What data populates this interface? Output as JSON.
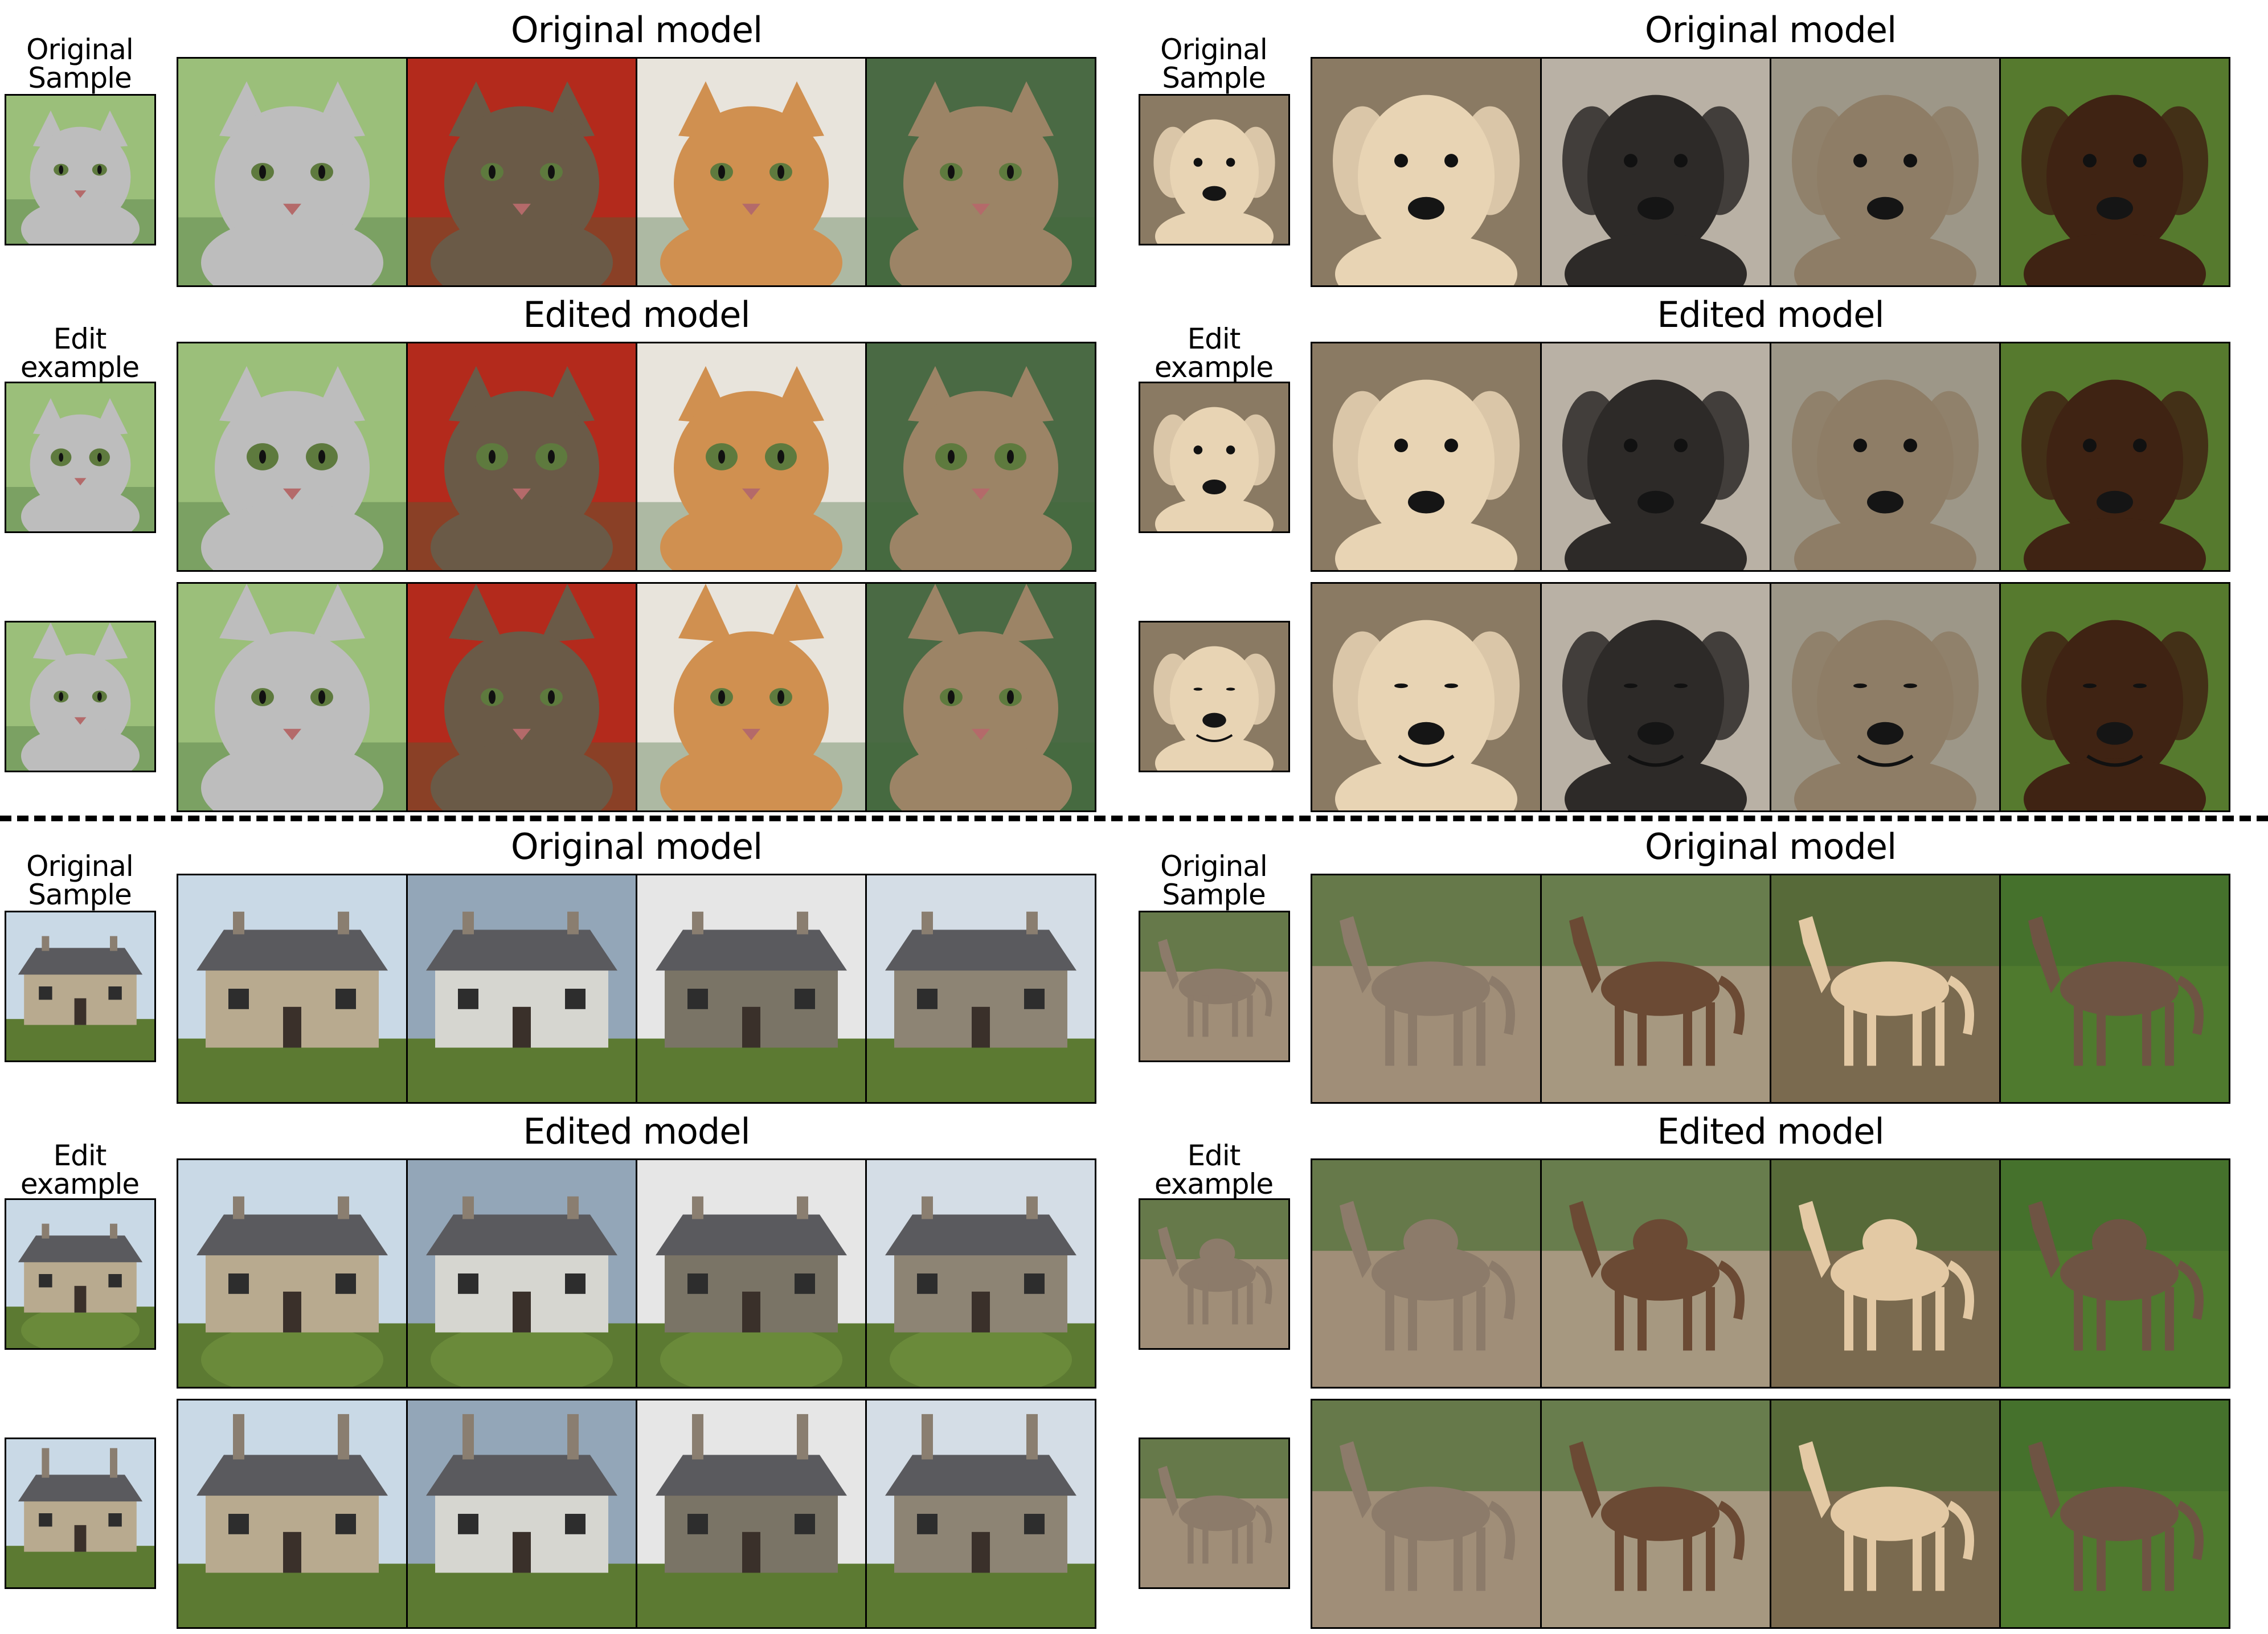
{
  "panels": [
    {
      "subject": "cat",
      "labels": {
        "original_sample": "Original\nSample",
        "edit_example": "Edit\nexample",
        "original_model": "Original model",
        "edited_model": "Edited model"
      },
      "colors": {
        "fur": [
          "#bdbdbd",
          "#6a5a47",
          "#d09050",
          "#9c8466"
        ],
        "bg": [
          "#9bbf7a",
          "#b32a1c",
          "#e8e4dc",
          "#4a6a44"
        ],
        "accent": "#3e6b3a"
      }
    },
    {
      "subject": "dog",
      "labels": {
        "original_sample": "Original\nSample",
        "edit_example": "Edit\nexample",
        "original_model": "Original model",
        "edited_model": "Edited model"
      },
      "colors": {
        "fur": [
          "#e8d4b4",
          "#2d2a28",
          "#8e7d66",
          "#3f2313"
        ],
        "bg": [
          "#8a7a63",
          "#b9b1a5",
          "#9d9788",
          "#567a2e"
        ],
        "accent": "#d69a2a"
      }
    },
    {
      "subject": "house",
      "labels": {
        "original_sample": "Original\nSample",
        "edit_example": "Edit\nexample",
        "original_model": "Original model",
        "edited_model": "Edited model"
      },
      "colors": {
        "fur": [
          "#b8aa8f",
          "#d6d6d0",
          "#7a7466",
          "#8d8474"
        ],
        "bg": [
          "#c9d9e6",
          "#93a6b8",
          "#e6e6e6",
          "#d4dde6"
        ],
        "accent": "#5c7a32"
      }
    },
    {
      "subject": "horse",
      "labels": {
        "original_sample": "Original\nSample",
        "edit_example": "Edit\nexample",
        "original_model": "Original model",
        "edited_model": "Edited model"
      },
      "colors": {
        "fur": [
          "#8c7b6a",
          "#6b4a34",
          "#e3c9a4",
          "#6e5443"
        ],
        "bg": [
          "#a08e78",
          "#a69880",
          "#7a6a4f",
          "#4f7a2e"
        ],
        "accent": "#3f6b2c"
      }
    }
  ]
}
